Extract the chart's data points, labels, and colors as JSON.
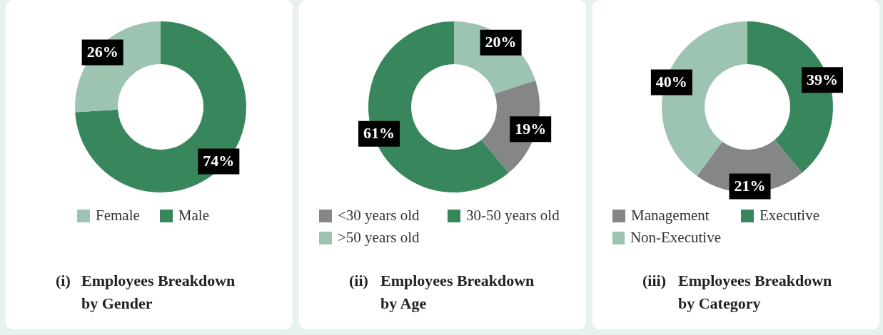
{
  "chart_data": [
    {
      "type": "donut",
      "title": "(i) Employees Breakdown by Gender",
      "categories": [
        "Female",
        "Male"
      ],
      "values": [
        26,
        74
      ],
      "colors": [
        "#9dc4b0",
        "#38875c"
      ],
      "value_labels": [
        "26%",
        "74%"
      ],
      "legend": "bottom"
    },
    {
      "type": "donut",
      "title": "(ii) Employees Breakdown by Age",
      "categories": [
        "<30 years old",
        "30-50 years old",
        ">50 years old"
      ],
      "values": [
        19,
        61,
        20
      ],
      "colors": [
        "#858688",
        "#38875c",
        "#9dc4b0"
      ],
      "value_labels": [
        "19%",
        "61%",
        "20%"
      ],
      "legend": "bottom"
    },
    {
      "type": "donut",
      "title": "(iii) Employees Breakdown by Category",
      "categories": [
        "Management",
        "Executive",
        "Non-Executive"
      ],
      "values": [
        21,
        39,
        40
      ],
      "colors": [
        "#858688",
        "#38875c",
        "#9dc4b0"
      ],
      "value_labels": [
        "21%",
        "39%",
        "40%"
      ],
      "legend": "bottom"
    }
  ]
}
